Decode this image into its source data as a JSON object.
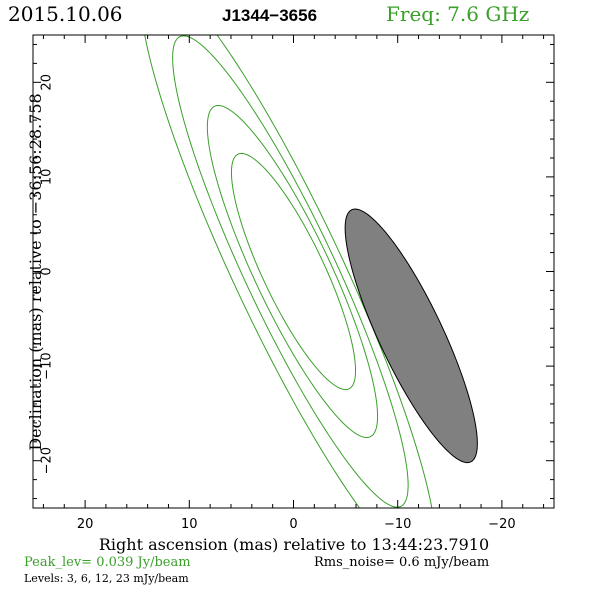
{
  "header": {
    "date": "2015.10.06",
    "source": "J1344−3656",
    "freq": "Freq: 7.6 GHz"
  },
  "footer": {
    "peak": "Peak_lev=  0.039 Jy/beam",
    "rms": "Rms_noise=   0.6 mJy/beam",
    "levels": "Levels:   3,   6,  12,  23 mJy/beam"
  },
  "colors": {
    "contour": "#3aa02a",
    "beam_fill": "#808080",
    "axes": "#000000"
  },
  "chart_data": {
    "type": "contour",
    "xlabel": "Right ascension (mas) relative to 13:44:23.7910",
    "ylabel": "Declination (mas) relative to −36:56:28.758",
    "xlim": [
      25,
      -25
    ],
    "ylim": [
      -25,
      25
    ],
    "x_ticks": [
      20,
      10,
      0,
      -10,
      -20
    ],
    "y_ticks": [
      20,
      10,
      0,
      -10,
      -20
    ],
    "x_tick_labels": [
      "20",
      "10",
      "0",
      "−10",
      "−20"
    ],
    "y_tick_labels": [
      "20",
      "10",
      "0",
      "−10",
      "−20"
    ],
    "levels_mJy": [
      3,
      6,
      12,
      23
    ],
    "contours": [
      {
        "level": 3,
        "center": [
          0.5,
          0
        ],
        "semi_major": 34,
        "semi_minor": 5.3,
        "pa_deg": 23
      },
      {
        "level": 6,
        "center": [
          0.3,
          0
        ],
        "semi_major": 27,
        "semi_minor": 4.4,
        "pa_deg": 23
      },
      {
        "level": 12,
        "center": [
          0.1,
          0
        ],
        "semi_major": 19,
        "semi_minor": 3.7,
        "pa_deg": 23
      },
      {
        "level": 23,
        "center": [
          0.0,
          0
        ],
        "semi_major": 13.5,
        "semi_minor": 3.0,
        "pa_deg": 23
      }
    ],
    "beam": {
      "center": [
        -11.3,
        -6.8
      ],
      "semi_major": 14.5,
      "semi_minor": 3.1,
      "pa_deg": 23
    },
    "peak_Jy_per_beam": 0.039,
    "rms_mJy_per_beam": 0.6
  }
}
